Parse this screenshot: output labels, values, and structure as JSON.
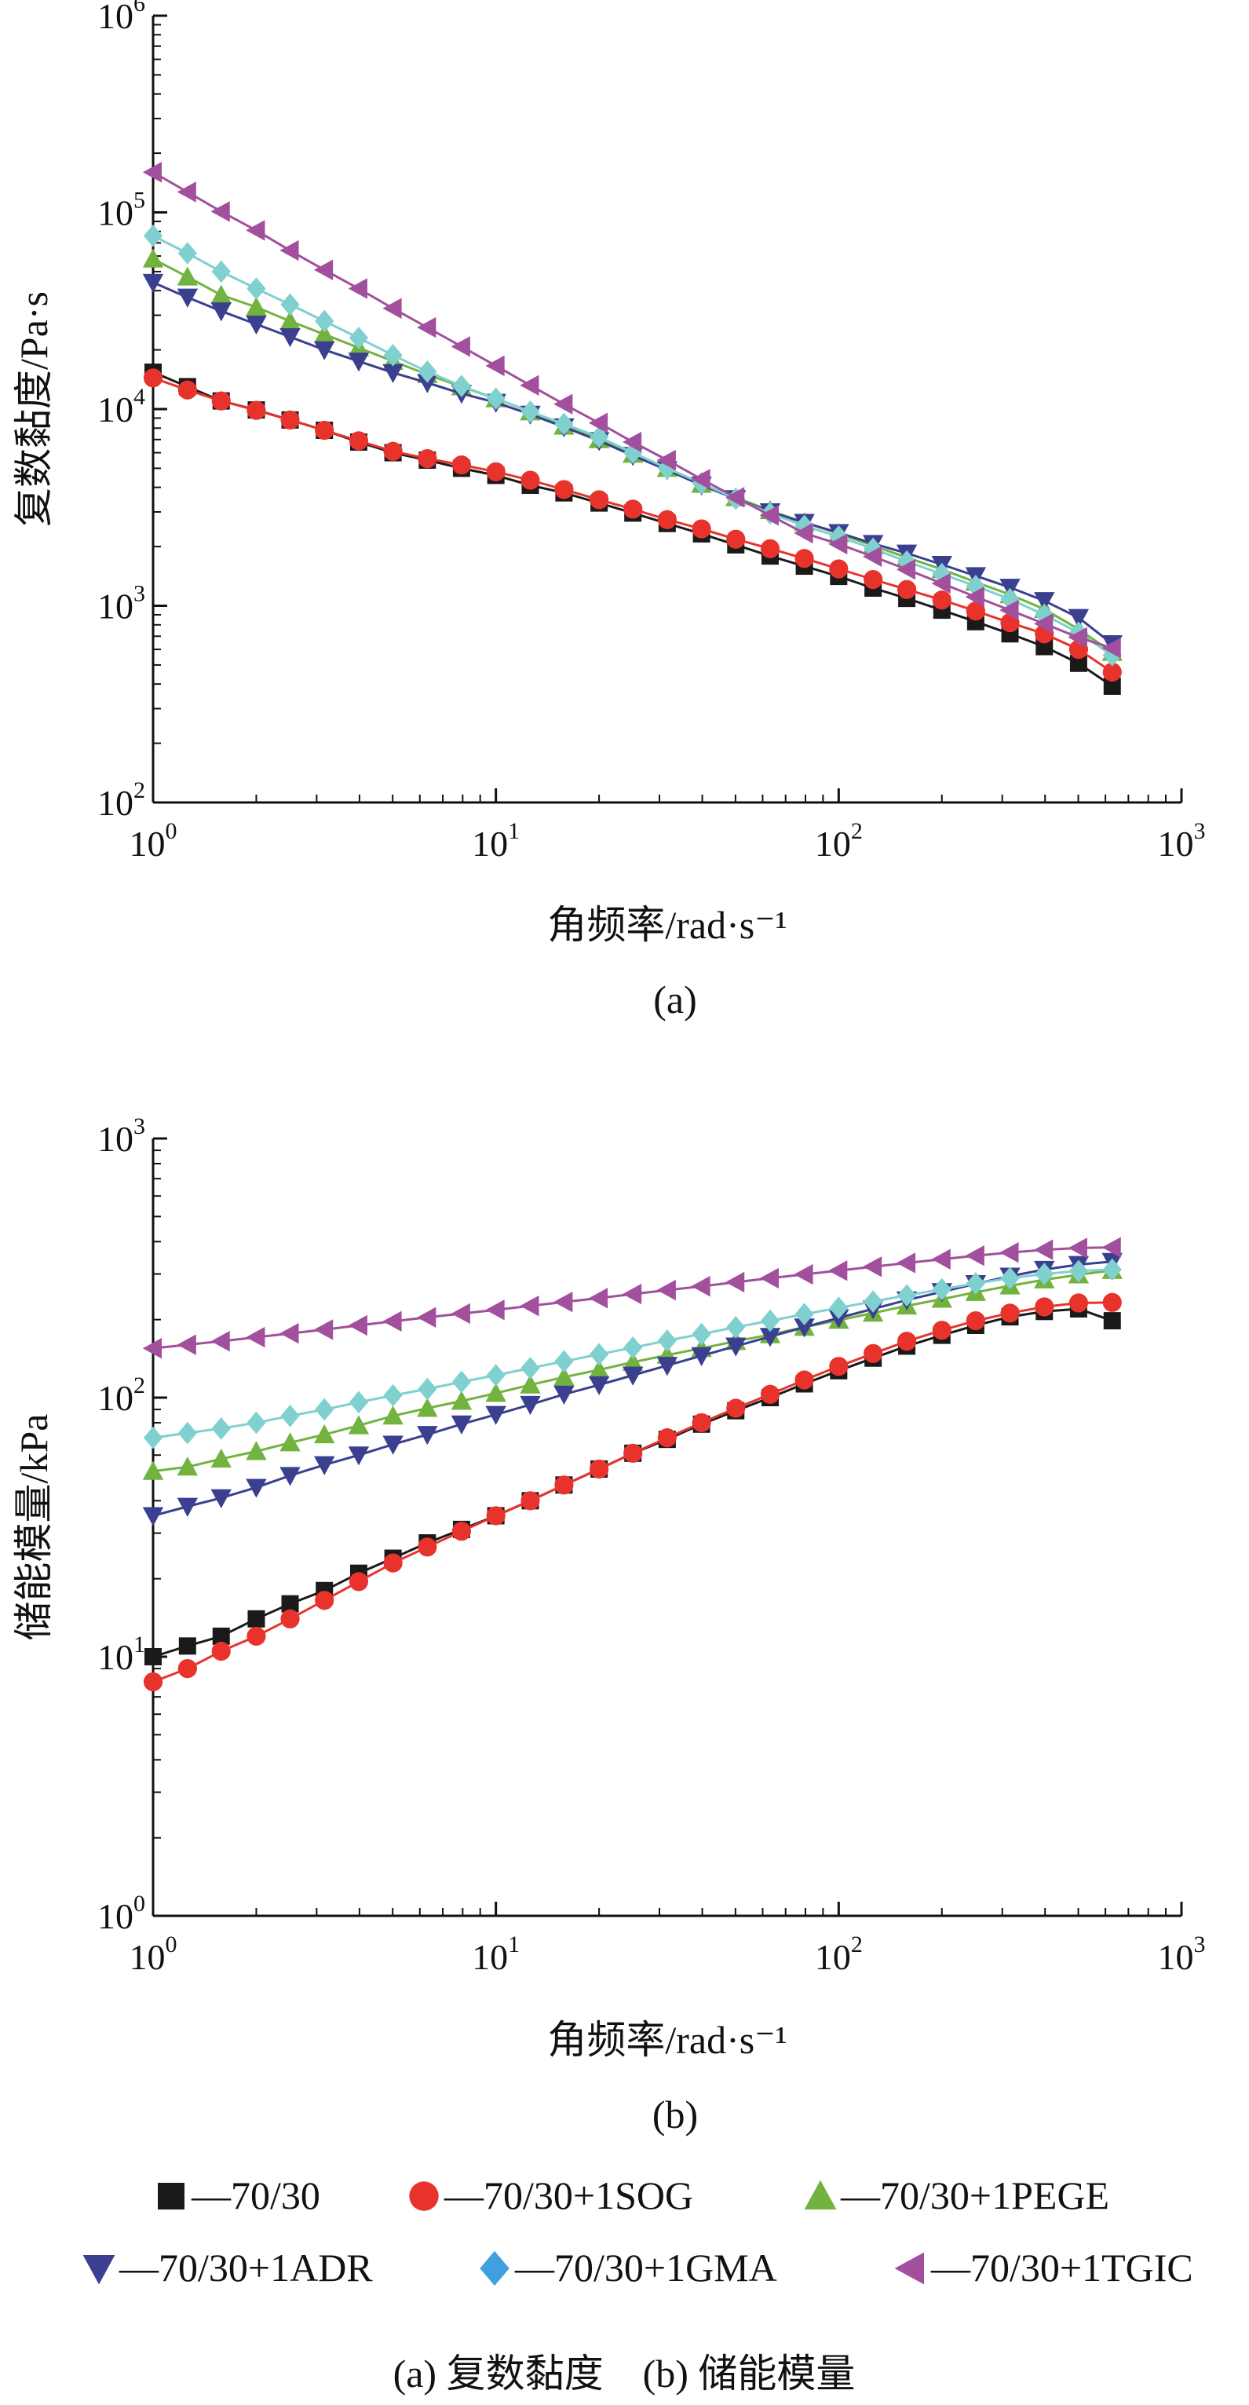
{
  "chart_data": [
    {
      "id": "a",
      "type": "line",
      "panel_label": "(a)",
      "xlabel": "角频率/rad·s⁻¹",
      "ylabel": "复数黏度/Pa·s",
      "xscale": "log",
      "yscale": "log",
      "xlim": [
        1,
        1000
      ],
      "ylim": [
        100,
        1000000
      ],
      "xticks": [
        1,
        10,
        100,
        1000
      ],
      "yticks": [
        100,
        1000,
        10000,
        100000,
        1000000
      ],
      "x": [
        1,
        1.26,
        1.58,
        2,
        2.51,
        3.16,
        3.98,
        5.01,
        6.31,
        7.94,
        10,
        12.6,
        15.8,
        20,
        25.1,
        31.6,
        39.8,
        50.1,
        63.1,
        79.4,
        100,
        126,
        158,
        200,
        251,
        316,
        398,
        501,
        628
      ],
      "series": [
        {
          "name": "70/30",
          "marker": "square",
          "color": "#1a1a1a",
          "values": [
            15400,
            13000,
            11000,
            9900,
            8800,
            7800,
            6800,
            6000,
            5500,
            5000,
            4600,
            4100,
            3750,
            3330,
            2960,
            2620,
            2320,
            2040,
            1790,
            1590,
            1410,
            1230,
            1090,
            950,
            830,
            720,
            620,
            510,
            390
          ]
        },
        {
          "name": "70/30+1SOG",
          "marker": "circle",
          "color": "#e8332c",
          "values": [
            14400,
            12500,
            11000,
            9850,
            8800,
            7800,
            6900,
            6100,
            5600,
            5200,
            4800,
            4350,
            3900,
            3460,
            3100,
            2740,
            2460,
            2180,
            1950,
            1740,
            1540,
            1360,
            1210,
            1070,
            940,
            820,
            720,
            600,
            460
          ]
        },
        {
          "name": "70/30+1PEGE",
          "marker": "triangle-up",
          "color": "#72b340",
          "values": [
            58000,
            47000,
            38000,
            33000,
            28000,
            24000,
            20500,
            17500,
            15000,
            13000,
            11300,
            9700,
            8200,
            7000,
            5900,
            5000,
            4150,
            3550,
            3050,
            2650,
            2330,
            2020,
            1760,
            1530,
            1320,
            1140,
            960,
            760,
            580
          ]
        },
        {
          "name": "70/30+1ADR",
          "marker": "triangle-down",
          "color": "#3a3f8f",
          "values": [
            44000,
            37000,
            31500,
            27000,
            23300,
            20000,
            17500,
            15300,
            13600,
            12000,
            10800,
            9400,
            8100,
            6900,
            5800,
            4900,
            4100,
            3500,
            3000,
            2650,
            2350,
            2070,
            1850,
            1620,
            1420,
            1240,
            1060,
            870,
            640
          ]
        },
        {
          "name": "70/30+1GMA",
          "marker": "diamond",
          "color": "#7fd0cf",
          "values": [
            76000,
            62000,
            50000,
            41000,
            34000,
            28000,
            23000,
            18800,
            15500,
            13100,
            11300,
            9700,
            8400,
            7200,
            6000,
            5000,
            4200,
            3500,
            2950,
            2550,
            2250,
            1950,
            1680,
            1450,
            1260,
            1080,
            900,
            730,
            560
          ]
        },
        {
          "name": "70/30+1TGIC",
          "marker": "triangle-left",
          "color": "#a24f9d",
          "values": [
            160000,
            127000,
            101000,
            81000,
            64000,
            51000,
            41000,
            32500,
            26000,
            20800,
            16600,
            13200,
            10600,
            8500,
            6800,
            5500,
            4400,
            3560,
            2880,
            2340,
            2060,
            1780,
            1530,
            1300,
            1110,
            950,
            810,
            690,
            610
          ]
        }
      ]
    },
    {
      "id": "b",
      "type": "line",
      "panel_label": "(b)",
      "xlabel": "角频率/rad·s⁻¹",
      "ylabel": "储能模量/kPa",
      "xscale": "log",
      "yscale": "log",
      "xlim": [
        1,
        1000
      ],
      "ylim": [
        1,
        1000
      ],
      "xticks": [
        1,
        10,
        100,
        1000
      ],
      "yticks": [
        1,
        10,
        100,
        1000
      ],
      "x": [
        1,
        1.26,
        1.58,
        2,
        2.51,
        3.16,
        3.98,
        5.01,
        6.31,
        7.94,
        10,
        12.6,
        15.8,
        20,
        25.1,
        31.6,
        39.8,
        50.1,
        63.1,
        79.4,
        100,
        126,
        158,
        200,
        251,
        316,
        398,
        501,
        628
      ],
      "series": [
        {
          "name": "70/30",
          "marker": "square",
          "color": "#1a1a1a",
          "values": [
            10,
            11,
            12,
            14,
            16,
            18,
            21,
            24,
            27.5,
            31,
            35,
            40,
            46,
            53,
            61,
            69,
            79,
            89,
            100,
            113,
            127,
            142,
            158,
            174,
            190,
            205,
            215,
            220,
            198
          ]
        },
        {
          "name": "70/30+1SOG",
          "marker": "circle",
          "color": "#e8332c",
          "values": [
            8,
            9,
            10.5,
            12,
            14,
            16.5,
            19.5,
            23,
            26.5,
            30.5,
            35,
            40,
            46,
            53,
            61,
            70,
            80,
            91,
            103,
            117,
            132,
            148,
            165,
            182,
            198,
            212,
            224,
            232,
            233
          ]
        },
        {
          "name": "70/30+1PEGE",
          "marker": "triangle-up",
          "color": "#72b340",
          "values": [
            52,
            54,
            58,
            62,
            67,
            72,
            78,
            85,
            91,
            97,
            104,
            112,
            120,
            128,
            137,
            146,
            155,
            165,
            175,
            187,
            199,
            212,
            226,
            240,
            255,
            270,
            285,
            298,
            310
          ]
        },
        {
          "name": "70/30+1ADR",
          "marker": "triangle-down",
          "color": "#3a3f8f",
          "values": [
            35,
            38,
            41,
            45,
            50,
            55,
            60,
            66,
            72,
            79,
            86,
            94,
            103,
            112,
            122,
            133,
            145,
            158,
            172,
            187,
            203,
            220,
            238,
            256,
            275,
            294,
            312,
            326,
            335
          ]
        },
        {
          "name": "70/30+1GMA",
          "marker": "diamond",
          "color": "#7fd0cf",
          "values": [
            70,
            73,
            76,
            80,
            85,
            90,
            96,
            102,
            108,
            115,
            122,
            130,
            138,
            147,
            156,
            166,
            176,
            187,
            198,
            210,
            222,
            235,
            248,
            262,
            276,
            289,
            300,
            308,
            312
          ]
        },
        {
          "name": "70/30+1TGIC",
          "marker": "triangle-left",
          "color": "#a24f9d",
          "values": [
            155,
            160,
            165,
            171,
            177,
            183,
            190,
            197,
            204,
            211,
            218,
            226,
            234,
            242,
            251,
            260,
            269,
            279,
            289,
            299,
            309,
            320,
            331,
            342,
            353,
            363,
            372,
            378,
            380
          ]
        }
      ]
    }
  ],
  "legend": {
    "entries": [
      {
        "label": "—70/30",
        "marker": "square",
        "color": "#1a1a1a"
      },
      {
        "label": "—70/30+1SOG",
        "marker": "circle",
        "color": "#e8332c"
      },
      {
        "label": "—70/30+1PEGE",
        "marker": "triangle-up",
        "color": "#72b340"
      },
      {
        "label": "—70/30+1ADR",
        "marker": "triangle-down",
        "color": "#3a3f8f"
      },
      {
        "label": "—70/30+1GMA",
        "marker": "diamond",
        "color": "#3f9fdf"
      },
      {
        "label": "—70/30+1TGIC",
        "marker": "triangle-left",
        "color": "#a24f9d"
      }
    ]
  },
  "caption": "(a) 复数黏度　(b) 储能模量"
}
